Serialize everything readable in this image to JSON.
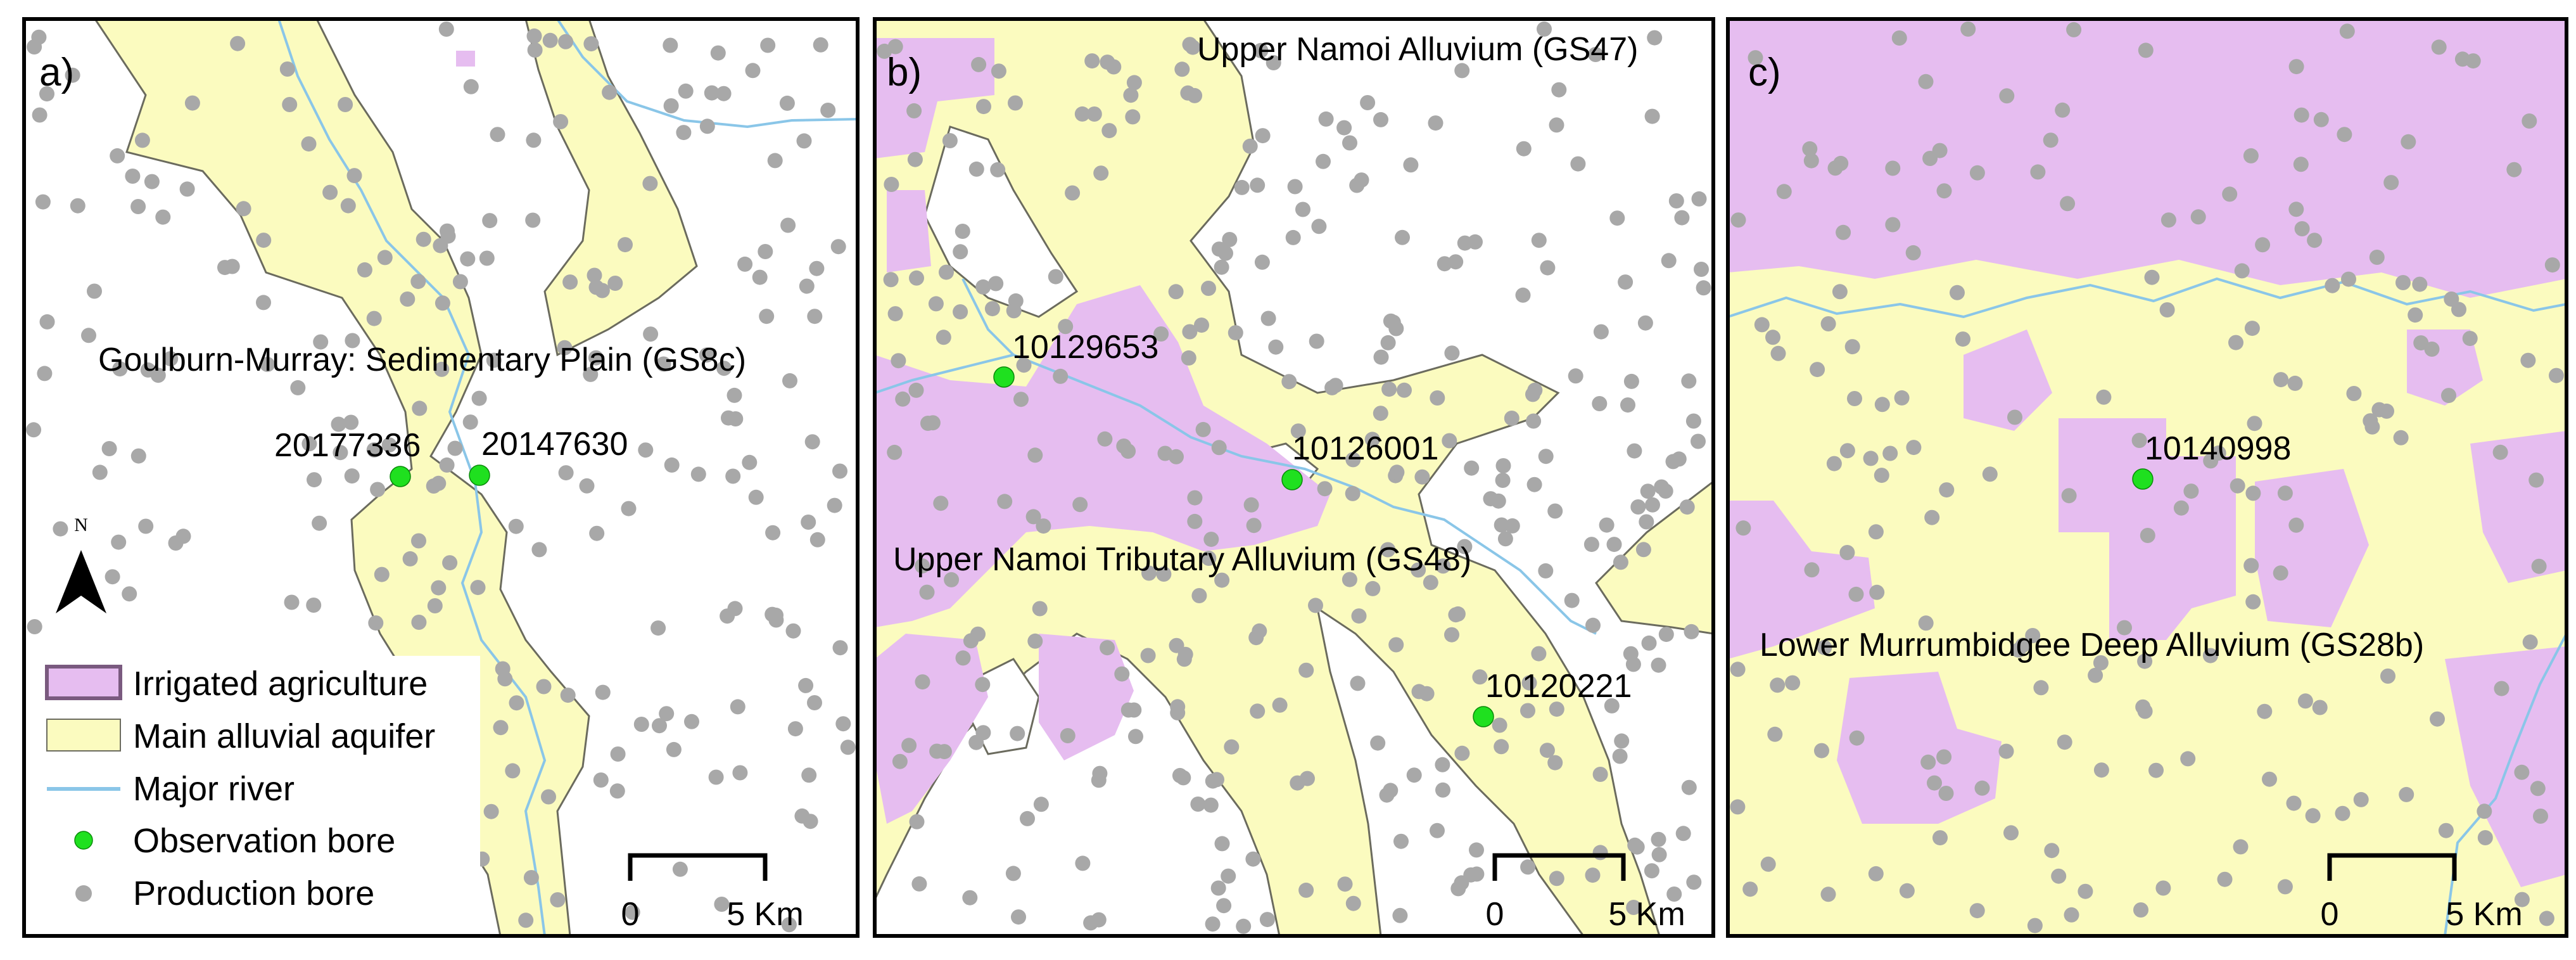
{
  "colors": {
    "irrigated": "#e6bdf0",
    "irrigated_border": "#7a5a7f",
    "aquifer": "#fbfbbf",
    "aquifer_border": "#6b6b5e",
    "river": "#8ac6e8",
    "observation_bore": "#1fe01f",
    "production_bore": "#a8a8a8",
    "frame": "#000000"
  },
  "north_arrow": {
    "letter": "N"
  },
  "legend": {
    "items": [
      {
        "label": "Irrigated agriculture",
        "symbol": "irrigated-swatch"
      },
      {
        "label": "Main alluvial aquifer",
        "symbol": "aquifer-swatch"
      },
      {
        "label": "Major river",
        "symbol": "river-line"
      },
      {
        "label": "Observation bore",
        "symbol": "observation-dot"
      },
      {
        "label": "Production bore",
        "symbol": "production-dot"
      }
    ]
  },
  "panels": [
    {
      "letter": "a)",
      "aquifer_label": "Goulburn-Murray: Sedimentary Plain (GS8c)",
      "bores": [
        {
          "id": "20177336"
        },
        {
          "id": "20147630"
        }
      ],
      "scale_bar": {
        "start": "0",
        "end": "5 Km"
      }
    },
    {
      "letter": "b)",
      "aquifer_labels": [
        "Upper Namoi Alluvium (GS47)",
        "Upper Namoi Tributary Alluvium (GS48)"
      ],
      "bores": [
        {
          "id": "10129653"
        },
        {
          "id": "10126001"
        },
        {
          "id": "10120221"
        }
      ],
      "scale_bar": {
        "start": "0",
        "end": "5 Km"
      }
    },
    {
      "letter": "c)",
      "aquifer_label": "Lower Murrumbidgee Deep Alluvium (GS28b)",
      "bores": [
        {
          "id": "10140998"
        }
      ],
      "scale_bar": {
        "start": "0",
        "end": "5 Km"
      }
    }
  ]
}
